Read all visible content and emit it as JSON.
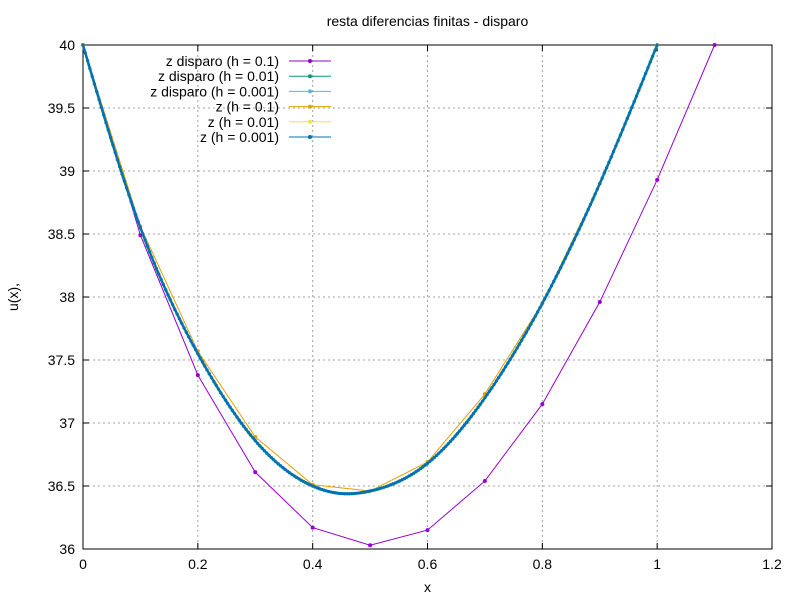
{
  "chart_data": {
    "type": "line",
    "title": "resta diferencias finitas - disparo",
    "xlabel": "x",
    "ylabel": "u(x),",
    "xlim": [
      0,
      1.2
    ],
    "ylim": [
      36,
      40
    ],
    "grid": true,
    "legend_position": "top-left",
    "x_ticks": [
      "0",
      "0.2",
      "0.4",
      "0.6",
      "0.8",
      "1",
      "1.2"
    ],
    "y_ticks": [
      "36",
      "36.5",
      "37",
      "37.5",
      "38",
      "38.5",
      "39",
      "39.5",
      "40"
    ],
    "series": [
      {
        "name": "z disparo (h = 0.1)",
        "color": "#9400d3",
        "x": [
          0,
          0.1,
          0.2,
          0.3,
          0.4,
          0.5,
          0.6,
          0.7,
          0.8,
          0.9,
          1.0,
          1.1
        ],
        "y": [
          40.0,
          38.49,
          37.38,
          36.61,
          36.17,
          36.03,
          36.15,
          36.54,
          37.15,
          37.96,
          38.93,
          40.0
        ]
      },
      {
        "name": "z disparo (h = 0.01)",
        "color": "#009e73",
        "x": [
          0,
          0.1,
          0.2,
          0.3,
          0.4,
          0.45,
          0.5,
          0.6,
          0.7,
          0.8,
          0.9,
          1.0
        ],
        "y": [
          40.0,
          38.55,
          37.55,
          36.86,
          36.5,
          36.44,
          36.46,
          36.68,
          37.2,
          37.95,
          38.9,
          40.0
        ]
      },
      {
        "name": "z disparo (h = 0.001)",
        "color": "#56b4e9",
        "x": [
          0,
          0.1,
          0.2,
          0.3,
          0.4,
          0.45,
          0.5,
          0.6,
          0.7,
          0.8,
          0.9,
          1.0
        ],
        "y": [
          40.0,
          38.55,
          37.55,
          36.86,
          36.5,
          36.44,
          36.46,
          36.68,
          37.2,
          37.95,
          38.9,
          40.0
        ]
      },
      {
        "name": "z (h = 0.1)",
        "color": "#e69f00",
        "x": [
          0,
          0.1,
          0.2,
          0.3,
          0.4,
          0.5,
          0.6,
          0.7,
          0.8,
          0.9,
          1.0
        ],
        "y": [
          40.0,
          38.56,
          37.57,
          36.89,
          36.51,
          36.46,
          36.69,
          37.23,
          37.95,
          38.9,
          40.0
        ]
      },
      {
        "name": "z (h = 0.01)",
        "color": "#f0e442",
        "x": [
          0,
          0.1,
          0.2,
          0.3,
          0.4,
          0.45,
          0.5,
          0.6,
          0.7,
          0.8,
          0.9,
          1.0
        ],
        "y": [
          40.0,
          38.55,
          37.55,
          36.86,
          36.5,
          36.44,
          36.46,
          36.68,
          37.2,
          37.95,
          38.9,
          40.0
        ]
      },
      {
        "name": "z (h = 0.001)",
        "color": "#0072b2",
        "x": [
          0,
          0.1,
          0.2,
          0.3,
          0.4,
          0.45,
          0.5,
          0.6,
          0.7,
          0.8,
          0.9,
          1.0
        ],
        "y": [
          40.0,
          38.55,
          37.55,
          36.86,
          36.5,
          36.44,
          36.46,
          36.68,
          37.2,
          37.95,
          38.9,
          40.0
        ]
      }
    ]
  }
}
